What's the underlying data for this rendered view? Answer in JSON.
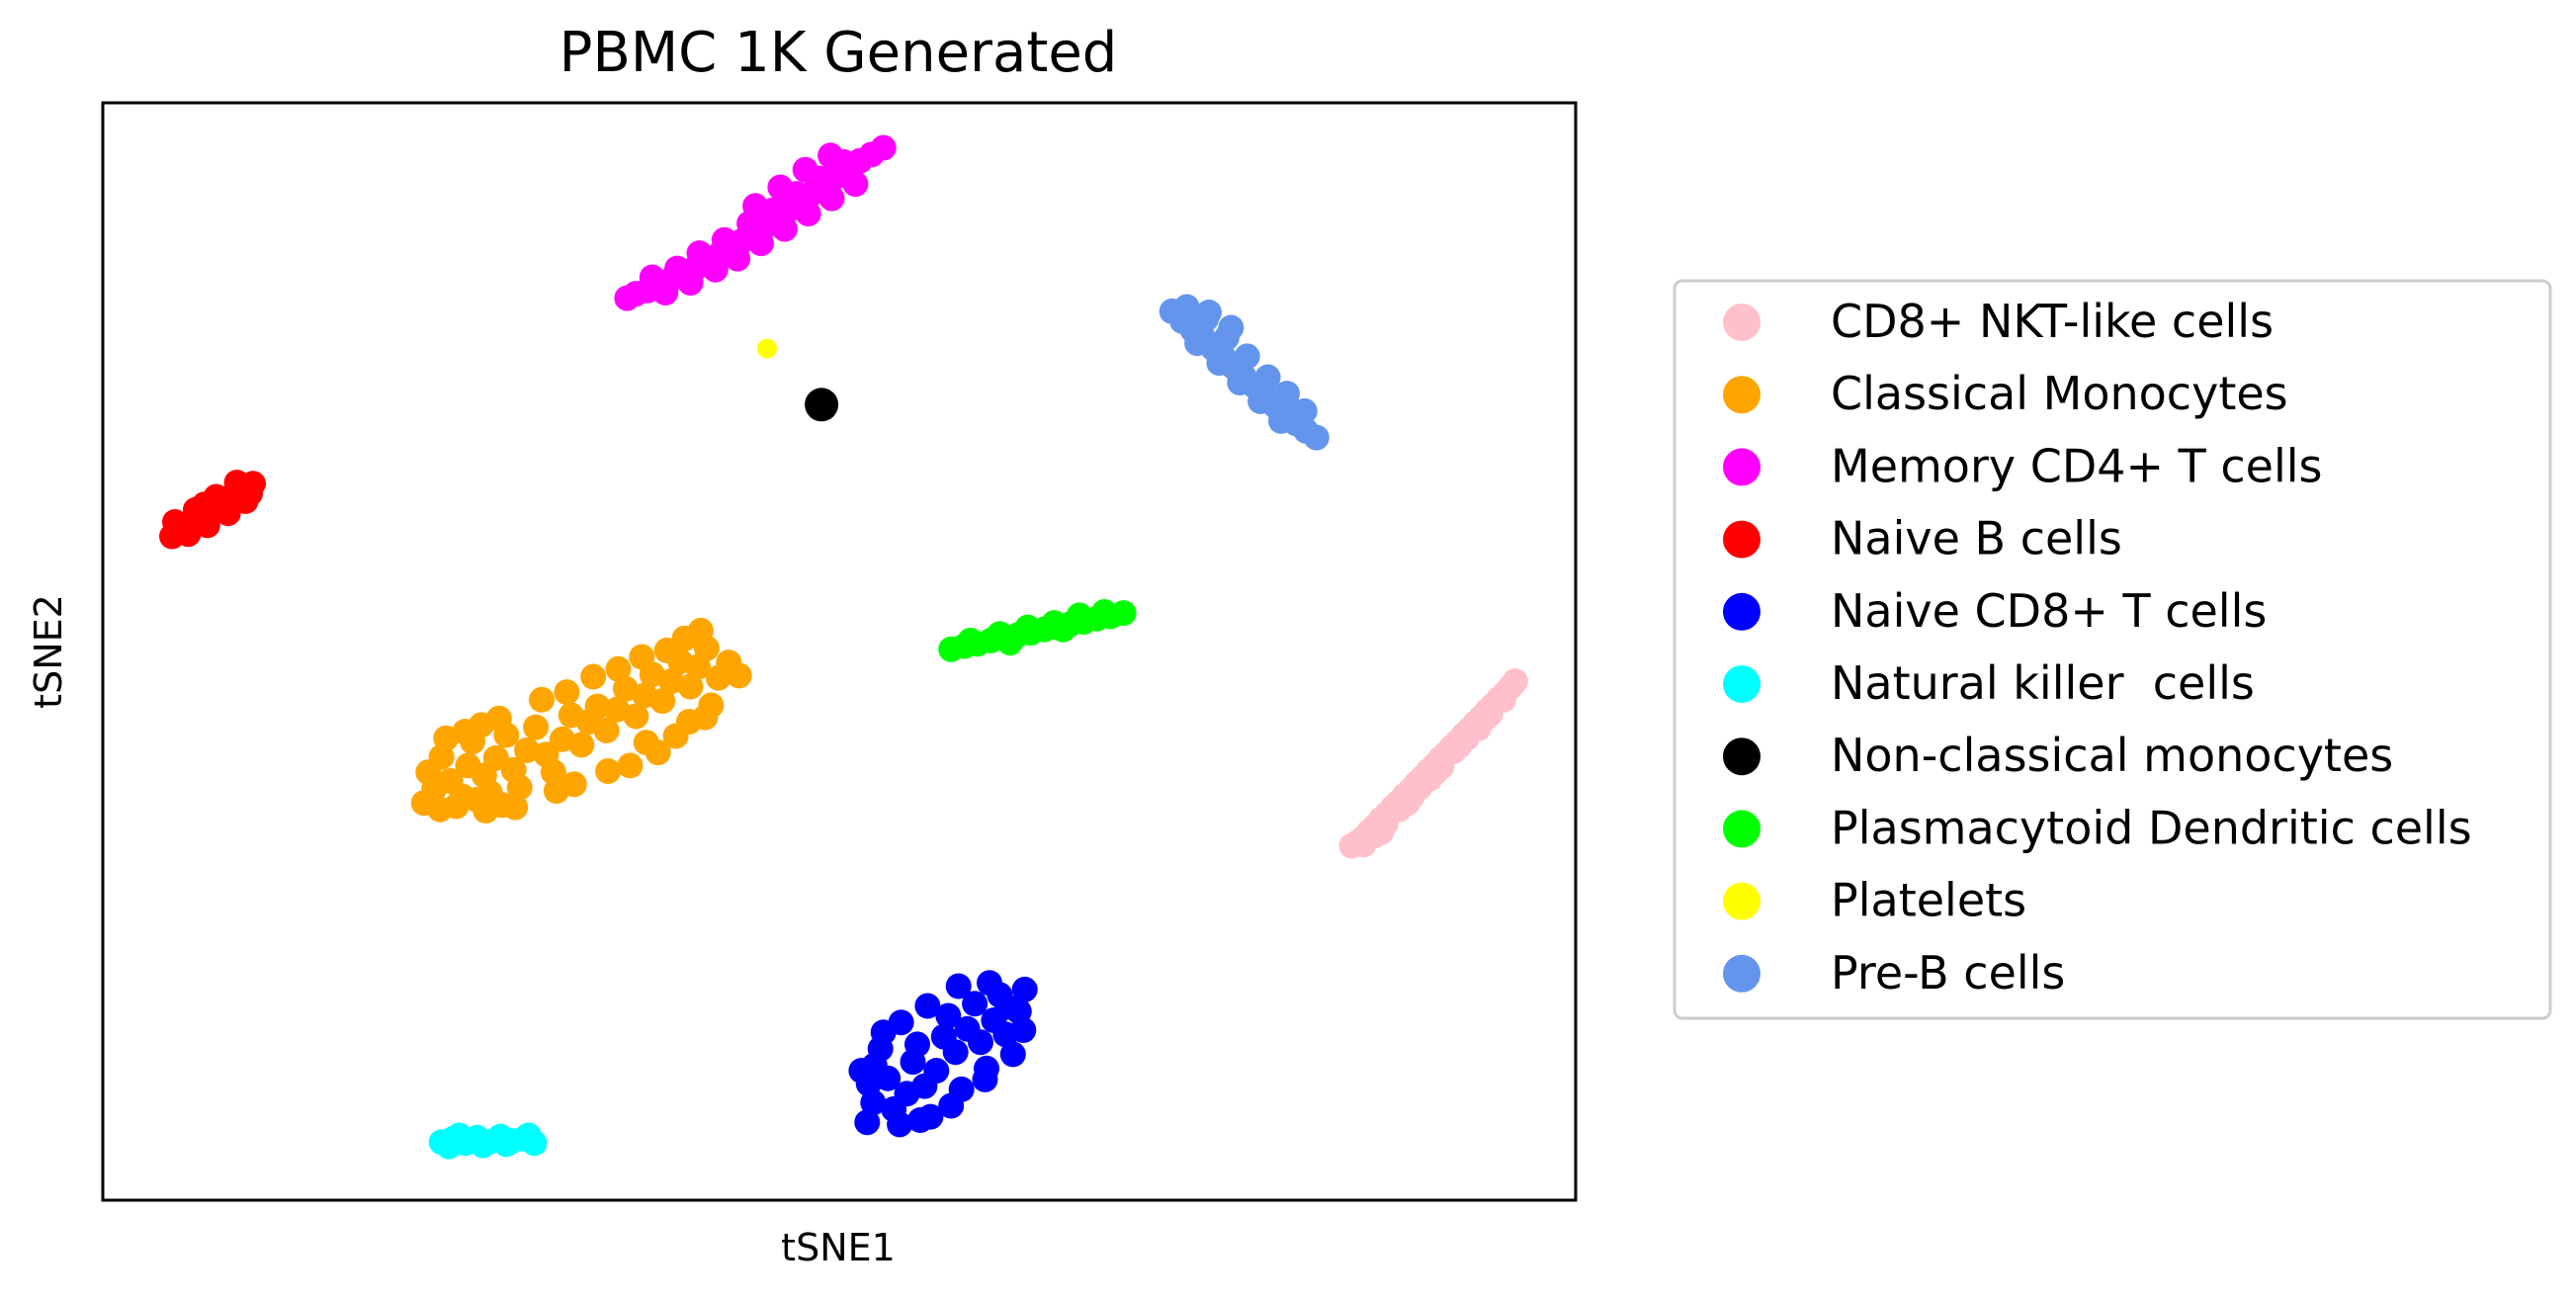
{
  "chart_data": {
    "type": "scatter",
    "title": "PBMC 1K Generated",
    "xlabel": "tSNE1",
    "ylabel": "tSNE2",
    "xlim": [
      0,
      100
    ],
    "ylim": [
      0,
      100
    ],
    "xticks": [],
    "yticks": [],
    "grid": false,
    "legend_position": "outside-right",
    "series": [
      {
        "name": "CD8+ NKT-like cells",
        "color": "#ffc0cb",
        "points": [
          [
            84.8,
            32.3
          ],
          [
            85.2,
            32.6
          ],
          [
            85.6,
            33.0
          ],
          [
            86.0,
            33.6
          ],
          [
            86.4,
            34.1
          ],
          [
            86.8,
            34.7
          ],
          [
            87.2,
            35.2
          ],
          [
            87.6,
            35.8
          ],
          [
            88.0,
            36.3
          ],
          [
            88.4,
            36.9
          ],
          [
            88.8,
            37.4
          ],
          [
            89.2,
            38.0
          ],
          [
            89.6,
            38.5
          ],
          [
            90.0,
            39.1
          ],
          [
            90.4,
            39.6
          ],
          [
            90.8,
            40.2
          ],
          [
            91.2,
            40.7
          ],
          [
            91.6,
            41.3
          ],
          [
            92.0,
            41.8
          ],
          [
            92.4,
            42.4
          ],
          [
            92.8,
            42.9
          ],
          [
            93.2,
            43.5
          ],
          [
            93.6,
            44.0
          ],
          [
            94.0,
            44.6
          ],
          [
            94.4,
            45.1
          ],
          [
            94.8,
            45.7
          ],
          [
            95.2,
            46.2
          ],
          [
            95.6,
            46.8
          ],
          [
            95.9,
            47.3
          ],
          [
            85.6,
            32.4
          ],
          [
            86.3,
            33.2
          ],
          [
            87.1,
            34.3
          ],
          [
            88.0,
            35.6
          ],
          [
            88.6,
            36.2
          ],
          [
            89.4,
            37.6
          ],
          [
            90.1,
            38.4
          ],
          [
            90.9,
            39.5
          ],
          [
            91.7,
            40.9
          ],
          [
            92.6,
            42.1
          ],
          [
            93.4,
            43.0
          ],
          [
            94.2,
            44.3
          ],
          [
            95.1,
            45.6
          ],
          [
            86.8,
            33.5
          ],
          [
            88.9,
            36.8
          ],
          [
            90.5,
            39.0
          ],
          [
            92.1,
            41.4
          ],
          [
            93.9,
            43.9
          ]
        ]
      },
      {
        "name": "Classical Monocytes",
        "color": "#ffa500",
        "points": [
          [
            21.8,
            36.2
          ],
          [
            22.5,
            37.5
          ],
          [
            22.1,
            39.0
          ],
          [
            23.0,
            40.4
          ],
          [
            23.6,
            38.2
          ],
          [
            24.4,
            36.8
          ],
          [
            24.8,
            39.6
          ],
          [
            25.1,
            41.8
          ],
          [
            25.9,
            38.7
          ],
          [
            26.3,
            37.1
          ],
          [
            26.7,
            40.3
          ],
          [
            27.4,
            42.4
          ],
          [
            27.9,
            39.2
          ],
          [
            28.3,
            37.6
          ],
          [
            28.8,
            41.0
          ],
          [
            29.4,
            43.1
          ],
          [
            30.1,
            40.6
          ],
          [
            30.6,
            39.0
          ],
          [
            31.2,
            42.0
          ],
          [
            31.8,
            44.2
          ],
          [
            32.5,
            41.5
          ],
          [
            33.0,
            43.6
          ],
          [
            33.6,
            45.0
          ],
          [
            34.2,
            42.8
          ],
          [
            34.9,
            44.7
          ],
          [
            35.5,
            46.6
          ],
          [
            36.2,
            44.1
          ],
          [
            36.8,
            46.0
          ],
          [
            37.3,
            47.9
          ],
          [
            38.0,
            45.5
          ],
          [
            38.6,
            47.3
          ],
          [
            39.2,
            49.1
          ],
          [
            39.9,
            46.8
          ],
          [
            40.4,
            48.6
          ],
          [
            41.0,
            50.3
          ],
          [
            41.8,
            47.6
          ],
          [
            42.5,
            49.0
          ],
          [
            43.2,
            47.8
          ],
          [
            22.9,
            35.6
          ],
          [
            24.0,
            35.9
          ],
          [
            25.4,
            36.5
          ],
          [
            26.0,
            35.5
          ],
          [
            27.1,
            36.0
          ],
          [
            28.0,
            35.8
          ],
          [
            23.3,
            42.1
          ],
          [
            24.6,
            42.7
          ],
          [
            25.7,
            43.3
          ],
          [
            26.9,
            43.9
          ],
          [
            29.8,
            45.6
          ],
          [
            31.5,
            46.3
          ],
          [
            33.3,
            47.7
          ],
          [
            35.0,
            48.4
          ],
          [
            36.6,
            49.5
          ],
          [
            38.3,
            50.1
          ],
          [
            39.5,
            51.2
          ],
          [
            40.6,
            51.9
          ],
          [
            32.0,
            37.9
          ],
          [
            35.8,
            39.6
          ],
          [
            37.7,
            40.8
          ],
          [
            39.8,
            43.6
          ],
          [
            41.3,
            45.1
          ],
          [
            34.3,
            39.1
          ],
          [
            30.8,
            37.3
          ],
          [
            36.9,
            41.7
          ],
          [
            38.9,
            42.3
          ],
          [
            40.9,
            44.0
          ]
        ]
      },
      {
        "name": "Memory CD4+ T cells",
        "color": "#ff00ff",
        "points": [
          [
            35.6,
            82.2
          ],
          [
            36.2,
            82.6
          ],
          [
            37.0,
            82.9
          ],
          [
            37.8,
            83.4
          ],
          [
            38.6,
            83.9
          ],
          [
            39.4,
            84.4
          ],
          [
            40.2,
            84.9
          ],
          [
            41.0,
            85.5
          ],
          [
            41.8,
            86.1
          ],
          [
            42.6,
            86.7
          ],
          [
            43.4,
            87.4
          ],
          [
            44.2,
            88.1
          ],
          [
            45.0,
            88.8
          ],
          [
            45.8,
            89.6
          ],
          [
            46.6,
            90.3
          ],
          [
            47.4,
            91.1
          ],
          [
            48.2,
            91.8
          ],
          [
            49.0,
            92.6
          ],
          [
            49.8,
            93.3
          ],
          [
            50.6,
            94.0
          ],
          [
            51.4,
            94.7
          ],
          [
            52.2,
            95.3
          ],
          [
            53.0,
            95.9
          ],
          [
            38.2,
            82.7
          ],
          [
            39.9,
            83.6
          ],
          [
            41.6,
            84.8
          ],
          [
            43.1,
            85.8
          ],
          [
            44.7,
            87.2
          ],
          [
            46.3,
            88.5
          ],
          [
            47.9,
            89.9
          ],
          [
            49.5,
            91.3
          ],
          [
            51.1,
            92.6
          ],
          [
            40.5,
            86.3
          ],
          [
            42.2,
            87.5
          ],
          [
            43.9,
            89.0
          ],
          [
            45.5,
            90.2
          ],
          [
            47.1,
            91.7
          ],
          [
            48.7,
            93.1
          ],
          [
            50.3,
            94.6
          ],
          [
            44.3,
            90.6
          ],
          [
            46.0,
            92.3
          ],
          [
            47.7,
            93.9
          ],
          [
            49.4,
            95.2
          ],
          [
            37.3,
            84.1
          ],
          [
            39.0,
            84.9
          ]
        ]
      },
      {
        "name": "Naive B cells",
        "color": "#ff0000",
        "points": [
          [
            4.7,
            60.5
          ],
          [
            5.3,
            61.2
          ],
          [
            6.0,
            61.8
          ],
          [
            6.7,
            62.4
          ],
          [
            7.4,
            63.0
          ],
          [
            8.1,
            63.6
          ],
          [
            8.8,
            64.2
          ],
          [
            9.5,
            64.8
          ],
          [
            10.2,
            65.3
          ],
          [
            4.9,
            61.8
          ],
          [
            6.3,
            62.9
          ],
          [
            7.7,
            64.1
          ],
          [
            9.1,
            65.4
          ],
          [
            5.8,
            60.7
          ],
          [
            7.1,
            61.5
          ],
          [
            8.5,
            62.6
          ],
          [
            9.7,
            63.7
          ],
          [
            10.0,
            64.4
          ],
          [
            6.9,
            63.4
          ]
        ]
      },
      {
        "name": "Naive CD8+ T cells",
        "color": "#0000ff",
        "points": [
          [
            51.9,
            7.1
          ],
          [
            52.3,
            8.9
          ],
          [
            52.0,
            10.6
          ],
          [
            52.4,
            12.3
          ],
          [
            52.8,
            13.8
          ],
          [
            53.3,
            11.1
          ],
          [
            53.7,
            8.3
          ],
          [
            54.1,
            6.9
          ],
          [
            54.6,
            9.7
          ],
          [
            55.0,
            12.6
          ],
          [
            55.3,
            14.2
          ],
          [
            55.8,
            10.4
          ],
          [
            56.2,
            7.6
          ],
          [
            56.6,
            11.8
          ],
          [
            57.1,
            14.9
          ],
          [
            57.4,
            16.8
          ],
          [
            57.9,
            13.5
          ],
          [
            58.3,
            10.1
          ],
          [
            58.7,
            15.6
          ],
          [
            59.2,
            17.9
          ],
          [
            59.6,
            14.4
          ],
          [
            60.0,
            12.0
          ],
          [
            60.5,
            16.4
          ],
          [
            60.9,
            18.7
          ],
          [
            61.3,
            15.1
          ],
          [
            61.8,
            13.3
          ],
          [
            62.2,
            17.2
          ],
          [
            62.6,
            19.2
          ],
          [
            51.5,
            11.8
          ],
          [
            53.0,
            15.3
          ],
          [
            54.2,
            16.2
          ],
          [
            56.0,
            17.7
          ],
          [
            58.1,
            19.5
          ],
          [
            60.2,
            19.8
          ],
          [
            61.4,
            17.6
          ],
          [
            62.5,
            15.5
          ],
          [
            59.9,
            11.0
          ],
          [
            57.6,
            8.6
          ],
          [
            55.5,
            7.3
          ]
        ]
      },
      {
        "name": "Natural killer  cells",
        "color": "#00ffff",
        "points": [
          [
            23.0,
            5.3
          ],
          [
            23.8,
            5.6
          ],
          [
            24.6,
            5.2
          ],
          [
            25.4,
            5.7
          ],
          [
            26.2,
            5.3
          ],
          [
            27.0,
            5.8
          ],
          [
            27.8,
            5.4
          ],
          [
            28.6,
            5.6
          ],
          [
            29.3,
            5.2
          ],
          [
            24.2,
            5.9
          ],
          [
            25.8,
            5.0
          ],
          [
            27.4,
            5.1
          ],
          [
            28.9,
            5.9
          ],
          [
            23.5,
            4.9
          ]
        ]
      },
      {
        "name": "Non-classical monocytes",
        "color": "#000000",
        "points": [
          [
            48.8,
            72.5
          ]
        ]
      },
      {
        "name": "Plasmacytoid Dendritic cells",
        "color": "#00ff00",
        "points": [
          [
            57.6,
            50.2
          ],
          [
            58.5,
            50.5
          ],
          [
            59.4,
            50.7
          ],
          [
            60.3,
            51.0
          ],
          [
            61.2,
            51.2
          ],
          [
            62.1,
            51.5
          ],
          [
            63.0,
            51.7
          ],
          [
            63.9,
            52.0
          ],
          [
            64.8,
            52.2
          ],
          [
            65.7,
            52.5
          ],
          [
            66.6,
            52.7
          ],
          [
            67.5,
            53.0
          ],
          [
            68.4,
            53.2
          ],
          [
            69.3,
            53.5
          ],
          [
            58.9,
            51.0
          ],
          [
            60.9,
            51.6
          ],
          [
            62.8,
            52.2
          ],
          [
            64.6,
            52.6
          ],
          [
            66.3,
            53.3
          ],
          [
            68.0,
            53.6
          ],
          [
            61.6,
            50.8
          ],
          [
            65.2,
            52.0
          ]
        ]
      },
      {
        "name": "Platelets",
        "color": "#ffff00",
        "points": [
          [
            45.1,
            77.6
          ]
        ]
      },
      {
        "name": "Pre-B cells",
        "color": "#6495ed",
        "points": [
          [
            72.6,
            81.0
          ],
          [
            73.3,
            80.1
          ],
          [
            74.0,
            79.3
          ],
          [
            74.7,
            78.6
          ],
          [
            75.4,
            77.6
          ],
          [
            76.1,
            76.8
          ],
          [
            76.8,
            75.9
          ],
          [
            77.5,
            75.0
          ],
          [
            78.2,
            74.2
          ],
          [
            78.9,
            73.3
          ],
          [
            79.6,
            72.4
          ],
          [
            80.3,
            71.6
          ],
          [
            81.0,
            70.8
          ],
          [
            81.7,
            70.1
          ],
          [
            82.4,
            69.5
          ],
          [
            73.6,
            81.4
          ],
          [
            74.9,
            80.3
          ],
          [
            76.3,
            78.6
          ],
          [
            77.7,
            76.9
          ],
          [
            79.1,
            75.0
          ],
          [
            80.4,
            73.5
          ],
          [
            81.6,
            71.9
          ],
          [
            74.3,
            78.1
          ],
          [
            75.8,
            76.3
          ],
          [
            77.2,
            74.5
          ],
          [
            78.6,
            72.8
          ],
          [
            80.0,
            71.0
          ],
          [
            75.1,
            80.9
          ],
          [
            76.6,
            79.5
          ]
        ]
      }
    ]
  }
}
